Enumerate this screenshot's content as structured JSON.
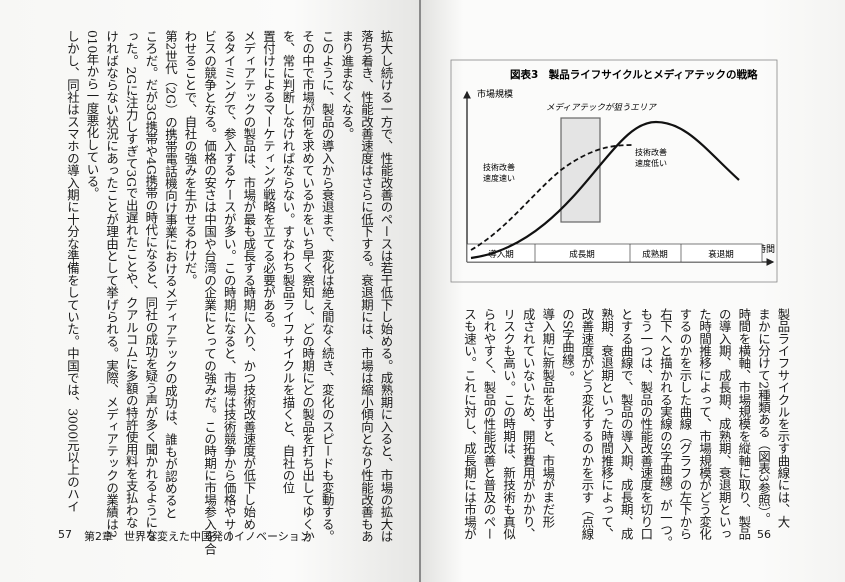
{
  "left_page": {
    "lines": [
      "拡大し続ける一方で、性能改善のペースは若干低下し始める。成熟期に入ると、市場の拡大は",
      "落ち着き、性能改善速度はさらに低下する。衰退期には、市場は縮小傾向となり性能改善もあ",
      "まり進まなくなる。",
      "このように、製品の導入から衰退まで、変化は絶え間なく続き、変化のスピードも変動する。",
      "その中で市場が何を求めているかをいち早く察知し、どの時期にどの製品を打ち出してゆくか",
      "を、常に判断しなければならない。すなわち製品ライフサイクルを描くと、自社の位",
      "置付けによるマーケティング戦略を立てる必要がある。",
      "メディアテックの製品は、市場が最も成長する時期に入り、かつ技術改善速度が低下し始め",
      "るタイミングで、参入するケースが多い。この時期になると、市場は技術競争から価格やサー",
      "ビスの競争となる。価格の安さは中国や台湾の企業にとっての強みだ。この時期に市場参入を合",
      "わせることで、自社の強みを生かせるわけだ。",
      "第2世代（2G）の携帯電話機向け事業におけるメディアテックの成功は、誰もが認めると",
      "ころだ。だが3G携帯や4G携帯の時代になると、同社の成功を疑う声が多く聞かれるようにな",
      "った。2Gに注力しすぎて3Gで出遅れたことや、クアルコムに多額の特許使用料を支払わな",
      "ければならない状況にあったことが理由として挙げられる。実際、メディアテックの業績は2",
      "010年から一度悪化している。",
      "しかし、同社はスマホの導入期に十分な準備をしていた。中国では、3000元以上のハイ"
    ],
    "page_number": "57",
    "footer": "第2章　世界を変えた中国発のイノベーション"
  },
  "right_page": {
    "figure": {
      "title": "図表3　製品ライフサイクルとメディアテックの戦略",
      "y_label": "市場規模",
      "x_label": "時間",
      "target_area": "メディアテックが狙うエリア",
      "fast_label": [
        "技術改善",
        "速度速い"
      ],
      "slow_label": [
        "技術改善",
        "速度低い"
      ],
      "phases": [
        "導入期",
        "成長期",
        "成熟期",
        "衰退期"
      ]
    },
    "lines": [
      "製品ライフサイクルを示す曲線には、大",
      "まかに分けて2種類ある（図表3参照）。",
      "時間を横軸、市場規模を縦軸に取り、製品",
      "の導入期、成長期、成熟期、衰退期といっ",
      "た時間推移によって、市場規模がどう変化",
      "するのかを示した曲線（グラフの左下から",
      "右下へと描かれる実線のS字曲線）が一つ。",
      "もう一つは、製品の性能改善速度を切り口",
      "とする曲線で、製品の導入期、成長期、成",
      "熟期、衰退期といった時間推移によって、",
      "改善速度がどう変化するのかを示す（点線",
      "のS字曲線）。",
      "導入期に新製品を出すと、市場がまだ形",
      "成されていないため、開拓費用がかかり、",
      "リスクも高い。この時期は、新技術も真似",
      "られやすく、製品の性能改善と普及のペー",
      "スも速い。これに対し、成長期には市場が"
    ],
    "page_number": "56"
  }
}
